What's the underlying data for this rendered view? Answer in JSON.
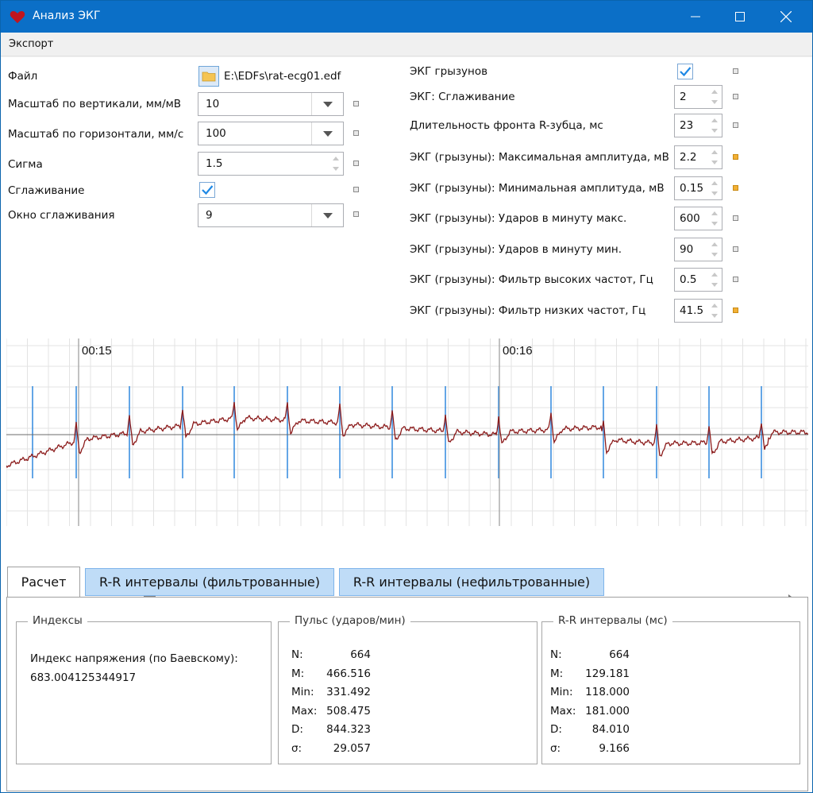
{
  "window": {
    "title": "Анализ ЭКГ"
  },
  "menu": {
    "export": "Экспорт"
  },
  "left_params": {
    "file": {
      "label": "Файл",
      "value": "E:\\EDFs\\rat-ecg01.edf"
    },
    "vscale": {
      "label": "Масштаб по вертикали, мм/мВ",
      "value": "10"
    },
    "hscale": {
      "label": "Масштаб по горизонтали, мм/с",
      "value": "100"
    },
    "sigma": {
      "label": "Сигма",
      "value": "1.5"
    },
    "smoothing": {
      "label": "Сглаживание",
      "checked": true
    },
    "window": {
      "label": "Окно сглаживания",
      "value": "9"
    }
  },
  "right_params": [
    {
      "label": "ЭКГ грызунов",
      "type": "check",
      "checked": true,
      "mark": "gray"
    },
    {
      "label": "ЭКГ: Сглаживание",
      "value": "2",
      "mark": "gray"
    },
    {
      "label": "Длительность фронта R-зубца, мс",
      "value": "23",
      "mark": "gray"
    },
    {
      "label": "ЭКГ (грызуны): Максимальная амплитуда, мВ",
      "value": "2.2",
      "mark": "orange"
    },
    {
      "label": "ЭКГ (грызуны): Минимальная амплитуда, мВ",
      "value": "0.15",
      "mark": "orange"
    },
    {
      "label": "ЭКГ (грызуны): Ударов в минуту макс.",
      "value": "600",
      "mark": "gray"
    },
    {
      "label": "ЭКГ (грызуны): Ударов в минуту мин.",
      "value": "90",
      "mark": "gray"
    },
    {
      "label": "ЭКГ (грызуны): Фильтр высоких частот, Гц",
      "value": "0.5",
      "mark": "gray"
    },
    {
      "label": "ЭКГ (грызуны): Фильтр низких частот, Гц",
      "value": "41.5",
      "mark": "orange"
    }
  ],
  "ecg": {
    "time_labels": [
      "00:15",
      "00:16"
    ],
    "colors": {
      "signal": "#8b1a1a",
      "r_marker": "#3d8fe0",
      "grid": "#e3e3e3",
      "baseline": "#555555"
    }
  },
  "tabs": [
    {
      "label": "Расчет",
      "active": true
    },
    {
      "label": "R-R интервалы (фильтрованные)",
      "active": false
    },
    {
      "label": "R-R интервалы (нефильтрованные)",
      "active": false
    }
  ],
  "groups": {
    "indices": {
      "title": "Индексы",
      "label": "Индекс напряжения (по Баевскому):",
      "value": "683.004125344917"
    },
    "pulse": {
      "title": "Пульс (ударов/мин)",
      "rows": [
        {
          "k": "N:",
          "v": "664"
        },
        {
          "k": "M:",
          "v": "466.516"
        },
        {
          "k": "Min:",
          "v": "331.492"
        },
        {
          "k": "Max:",
          "v": "508.475"
        },
        {
          "k": "D:",
          "v": "844.323"
        },
        {
          "k": "σ:",
          "v": "29.057"
        }
      ]
    },
    "rr": {
      "title": "R-R интервалы (мс)",
      "rows": [
        {
          "k": "N:",
          "v": "664"
        },
        {
          "k": "M:",
          "v": "129.181"
        },
        {
          "k": "Min:",
          "v": "118.000"
        },
        {
          "k": "Max:",
          "v": "181.000"
        },
        {
          "k": "D:",
          "v": "84.010"
        },
        {
          "k": "σ:",
          "v": "9.166"
        }
      ]
    }
  }
}
